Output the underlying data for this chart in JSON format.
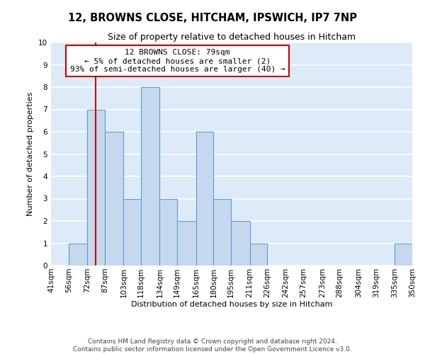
{
  "title": "12, BROWNS CLOSE, HITCHAM, IPSWICH, IP7 7NP",
  "subtitle": "Size of property relative to detached houses in Hitcham",
  "xlabel": "Distribution of detached houses by size in Hitcham",
  "ylabel": "Number of detached properties",
  "bin_edges": [
    41,
    56,
    72,
    87,
    103,
    118,
    134,
    149,
    165,
    180,
    195,
    211,
    226,
    242,
    257,
    273,
    288,
    304,
    319,
    335,
    350
  ],
  "counts": [
    0,
    1,
    7,
    6,
    3,
    8,
    3,
    2,
    6,
    3,
    2,
    1,
    0,
    0,
    0,
    0,
    0,
    0,
    0,
    1
  ],
  "bar_color": "#c5d8ed",
  "bar_edge_color": "#5b9bd5",
  "vline_x": 79,
  "vline_color": "#cc0000",
  "ylim": [
    0,
    10
  ],
  "yticks": [
    0,
    1,
    2,
    3,
    4,
    5,
    6,
    7,
    8,
    9,
    10
  ],
  "annotation_title": "12 BROWNS CLOSE: 79sqm",
  "annotation_line1": "← 5% of detached houses are smaller (2)",
  "annotation_line2": "93% of semi-detached houses are larger (40) →",
  "annotation_box_color": "#ffffff",
  "annotation_box_edge_color": "#cc0000",
  "footer1": "Contains HM Land Registry data © Crown copyright and database right 2024.",
  "footer2": "Contains public sector information licensed under the Open Government Licence v3.0.",
  "bg_color": "#ddeaf8",
  "grid_color": "#ffffff",
  "title_fontsize": 10.5,
  "subtitle_fontsize": 9,
  "axis_label_fontsize": 8,
  "tick_fontsize": 7.5,
  "annotation_fontsize": 8,
  "footer_fontsize": 6.5
}
